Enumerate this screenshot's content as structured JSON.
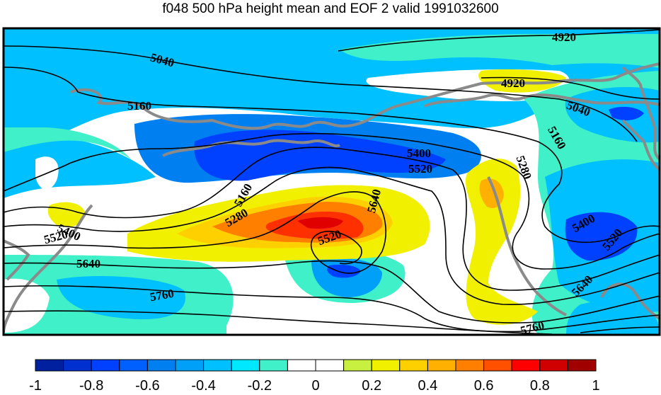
{
  "title": "f048 500 hPa height mean and EOF 2 valid 1991032600",
  "contour_labels": [
    "4920",
    "4920",
    "5040",
    "5040",
    "5160",
    "5160",
    "5160",
    "5280",
    "5280",
    "5400",
    "5400",
    "5400",
    "5520",
    "5520",
    "5520",
    "5520",
    "5640",
    "5640",
    "5640",
    "5760",
    "5760"
  ],
  "colorbar": {
    "ticks": [
      "-1",
      "-0.8",
      "-0.6",
      "-0.4",
      "-0.2",
      "0",
      "0.2",
      "0.4",
      "0.6",
      "0.8",
      "1"
    ],
    "colors": [
      "#0020a0",
      "#0030d0",
      "#0040ff",
      "#0060ff",
      "#0080f0",
      "#00a0f8",
      "#00c0ff",
      "#00e8ff",
      "#40f0c8",
      "#ffffff",
      "#ffffff",
      "#c8f040",
      "#f0f000",
      "#ffd000",
      "#ffb000",
      "#ff8000",
      "#ff5000",
      "#ff0000",
      "#d00000",
      "#a00000"
    ]
  },
  "palette": {
    "coast": "#8a8a8a",
    "contour": "#000000",
    "cyan_light": "#40f0c8",
    "cyan": "#00c0ff",
    "blue": "#0080f0",
    "blue_dark": "#0040ff",
    "yellow": "#f0f000",
    "orange": "#ffb000",
    "orange_dark": "#ff8000",
    "red": "#ff0000"
  }
}
